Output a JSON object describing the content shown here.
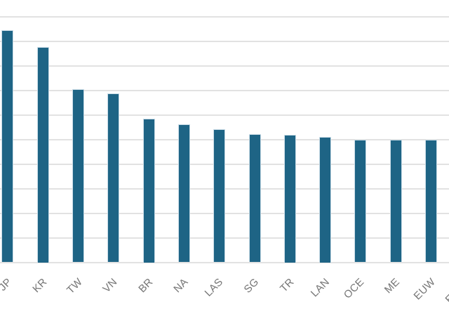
{
  "chart": {
    "background_color": "#ffffff",
    "bar_fill_color": "#1e6485",
    "bar_stroke_color": "#c9dce7",
    "gridline_color": "#e2e2e2",
    "tick_label_color": "#757575"
  },
  "chart_data": {
    "type": "bar",
    "categories": [
      "JP",
      "KR",
      "TW",
      "VN",
      "BR",
      "NA",
      "LAS",
      "SG",
      "TR",
      "LAN",
      "OCE",
      "ME",
      "EUW",
      "EUNE"
    ],
    "values": [
      9.43,
      8.75,
      7.04,
      6.88,
      5.85,
      5.61,
      5.41,
      5.22,
      5.2,
      5.1,
      4.99,
      4.99,
      4.98,
      null
    ],
    "title": "",
    "xlabel": "",
    "ylabel": "",
    "ylim": [
      0,
      10.7
    ],
    "gridline_values": [
      0,
      1,
      2,
      3,
      4,
      5,
      6,
      7,
      8,
      9,
      10
    ],
    "grid": "horizontal",
    "legend": "none",
    "note": "Chart is cropped: title and y-axis tick labels are outside the image; first label (JP) and last category (EUNE, bar off-screen) are clipped at the edges. Values estimated in gridline units (1 unit = one gridline spacing)."
  }
}
